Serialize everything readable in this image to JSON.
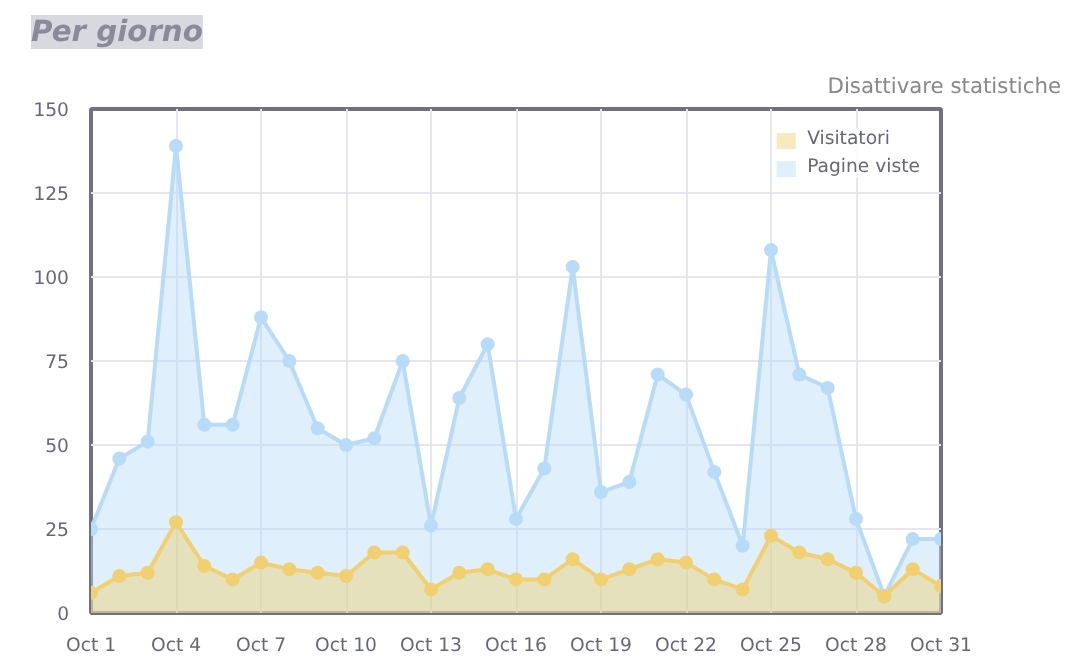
{
  "chart_data": {
    "type": "area",
    "title": "Per giorno",
    "annotations": [
      "Disattivare statistiche"
    ],
    "categories": [
      "Oct 1",
      null,
      null,
      "Oct 4",
      null,
      null,
      "Oct 7",
      null,
      null,
      "Oct 10",
      null,
      null,
      "Oct 13",
      null,
      null,
      "Oct 16",
      null,
      null,
      "Oct 19",
      null,
      null,
      "Oct 22",
      null,
      null,
      "Oct 25",
      null,
      null,
      "Oct 28",
      null,
      null,
      "Oct 31"
    ],
    "series": [
      {
        "name": "Visitatori",
        "color": "#f0d070",
        "values": [
          6,
          11,
          12,
          27,
          14,
          10,
          15,
          13,
          12,
          11,
          18,
          18,
          7,
          12,
          13,
          10,
          10,
          16,
          10,
          13,
          16,
          15,
          10,
          7,
          23,
          18,
          16,
          12,
          5,
          13,
          8
        ]
      },
      {
        "name": "Pagine viste",
        "color": "#b8dcf8",
        "values": [
          25,
          46,
          51,
          139,
          56,
          56,
          88,
          75,
          55,
          50,
          52,
          75,
          26,
          64,
          80,
          28,
          43,
          103,
          36,
          39,
          71,
          65,
          42,
          20,
          108,
          71,
          67,
          28,
          5,
          22,
          22
        ]
      }
    ],
    "ylim": [
      0,
      150
    ],
    "yticks": [
      0,
      25,
      50,
      75,
      100,
      125,
      150
    ],
    "grid": true,
    "legend": "top right",
    "marker": "circle"
  }
}
